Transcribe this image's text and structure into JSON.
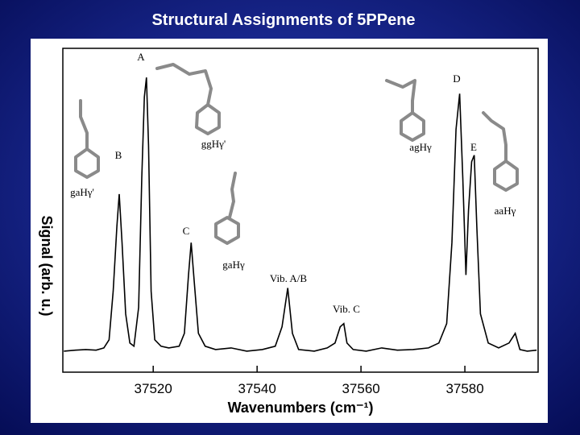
{
  "chart_data": {
    "type": "line",
    "title": "Structural Assignments of 5PPene",
    "x_label": "Wavenumbers (cm⁻¹)",
    "y_label": "Signal (arb. u.)",
    "x": [
      37502.8,
      37505,
      37507,
      37509,
      37510.5,
      37511.5,
      37512.3,
      37513,
      37513.45,
      37514,
      37514.7,
      37515.5,
      37516.3,
      37517.2,
      37517.8,
      37518.3,
      37518.7,
      37519.1,
      37519.6,
      37520.3,
      37521.5,
      37523,
      37525,
      37526,
      37526.8,
      37527.3,
      37527.9,
      37528.7,
      37530,
      37532,
      37535,
      37538,
      37541,
      37543.5,
      37544.8,
      37545.9,
      37546.8,
      37548,
      37551,
      37553.5,
      37555,
      37556,
      37556.7,
      37557.3,
      37558.5,
      37561,
      37564,
      37567,
      37570,
      37573,
      37575,
      37576.5,
      37577.5,
      37578.3,
      37579,
      37579.6,
      37580.2,
      37580.7,
      37581.3,
      37581.8,
      37582.3,
      37583,
      37584.5,
      37586.5,
      37588.5,
      37589.7,
      37590.6,
      37592,
      37593.8
    ],
    "values": [
      6.5,
      6.8,
      7,
      6.8,
      7.5,
      10,
      25,
      45,
      55,
      40,
      18,
      9,
      8,
      20,
      60,
      85,
      91,
      70,
      25,
      10,
      8,
      7.5,
      8,
      12,
      30,
      40,
      28,
      12,
      8,
      7,
      7.5,
      6.5,
      7,
      8,
      14,
      26,
      12,
      7,
      6.5,
      7.5,
      9,
      14,
      15,
      9,
      7,
      6.5,
      7.5,
      6.8,
      7,
      7.5,
      9,
      15,
      40,
      75,
      86,
      60,
      30,
      50,
      65,
      67,
      45,
      18,
      9,
      7.5,
      9,
      12,
      7,
      6.5,
      6.8
    ],
    "color": "#000000",
    "xlim": [
      37502.6,
      37594.1
    ],
    "ylim": [
      0,
      100
    ],
    "xticks": [
      37520,
      37540,
      37560,
      37580
    ],
    "annotations": [
      "A",
      "D",
      "E",
      "B",
      "ggHγ'",
      "agHγ",
      "gaHγ'",
      "aaHγ",
      "C",
      "gaHγ",
      "Vib. A/B",
      "Vib. C"
    ]
  }
}
